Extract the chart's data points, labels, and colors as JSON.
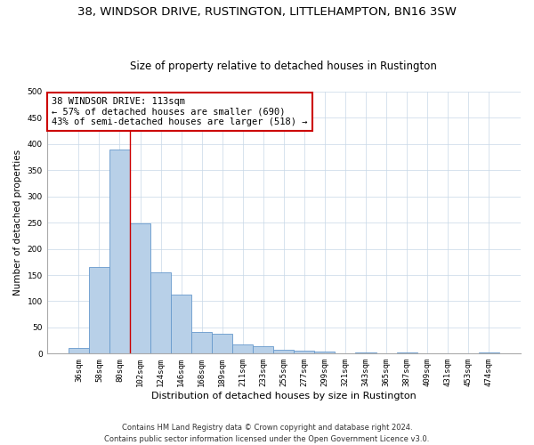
{
  "title1": "38, WINDSOR DRIVE, RUSTINGTON, LITTLEHAMPTON, BN16 3SW",
  "title2": "Size of property relative to detached houses in Rustington",
  "xlabel": "Distribution of detached houses by size in Rustington",
  "ylabel": "Number of detached properties",
  "categories": [
    "36sqm",
    "58sqm",
    "80sqm",
    "102sqm",
    "124sqm",
    "146sqm",
    "168sqm",
    "189sqm",
    "211sqm",
    "233sqm",
    "255sqm",
    "277sqm",
    "299sqm",
    "321sqm",
    "343sqm",
    "365sqm",
    "387sqm",
    "409sqm",
    "431sqm",
    "453sqm",
    "474sqm"
  ],
  "values": [
    10,
    165,
    390,
    248,
    155,
    113,
    42,
    38,
    18,
    14,
    8,
    6,
    4,
    0,
    3,
    0,
    3,
    0,
    0,
    0,
    3
  ],
  "bar_color": "#b8d0e8",
  "bar_edge_color": "#6699cc",
  "bar_linewidth": 0.6,
  "vline_color": "#cc0000",
  "vline_x_index": 2.5,
  "annotation_text": "38 WINDSOR DRIVE: 113sqm\n← 57% of detached houses are smaller (690)\n43% of semi-detached houses are larger (518) →",
  "box_color": "#cc0000",
  "ylim": [
    0,
    500
  ],
  "yticks": [
    0,
    50,
    100,
    150,
    200,
    250,
    300,
    350,
    400,
    450,
    500
  ],
  "footnote": "Contains HM Land Registry data © Crown copyright and database right 2024.\nContains public sector information licensed under the Open Government Licence v3.0.",
  "background_color": "#ffffff",
  "grid_color": "#c8d8e8",
  "title_fontsize": 9.5,
  "subtitle_fontsize": 8.5,
  "xlabel_fontsize": 8,
  "ylabel_fontsize": 7.5,
  "tick_fontsize": 6.5,
  "annotation_fontsize": 7.5,
  "footnote_fontsize": 6,
  "fig_width": 6.0,
  "fig_height": 5.0,
  "dpi": 100
}
